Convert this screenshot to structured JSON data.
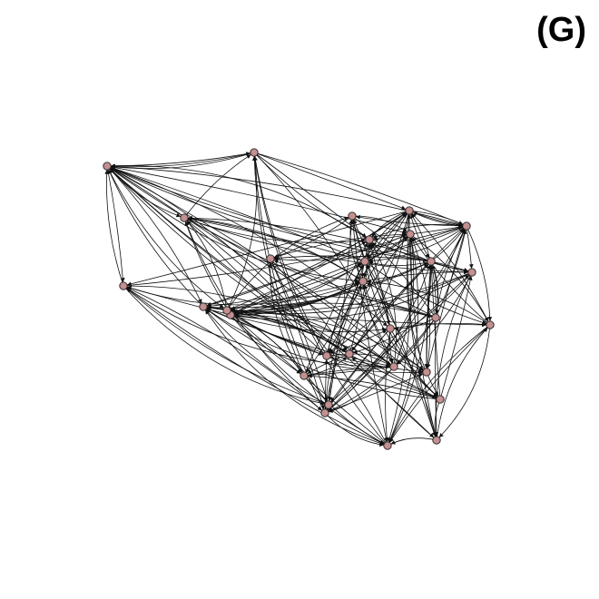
{
  "panel_label": "(G)",
  "colors": {
    "node_fill": "#c48f8f",
    "node_stroke": "#222222",
    "edge": "#111111",
    "background": "#ffffff"
  },
  "graph": {
    "directed": true,
    "edge_style": "curved",
    "node_count": 30
  }
}
